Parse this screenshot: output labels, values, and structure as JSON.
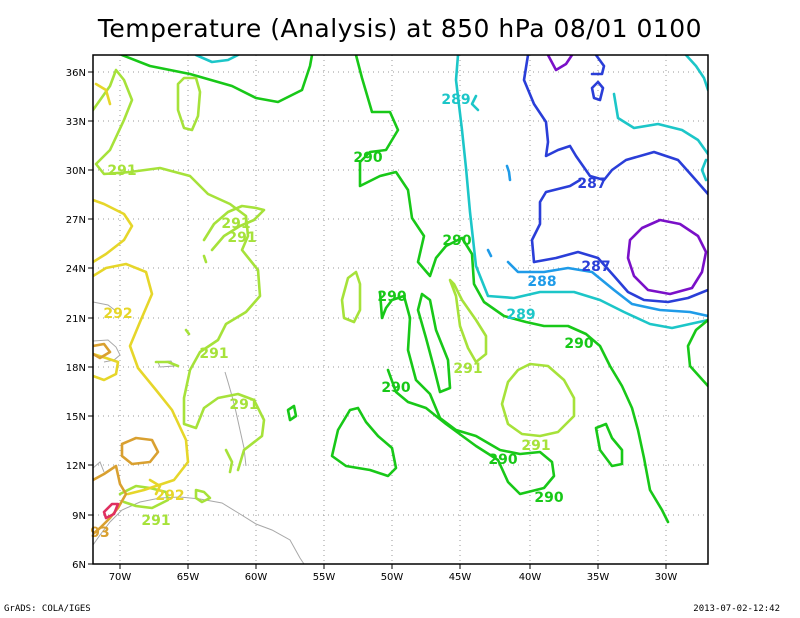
{
  "title": "Temperature (Analysis) at 850 hPa 08/01 0100",
  "footer": {
    "credit": "GrADS: COLA/IGES",
    "timestamp": "2013-07-02-12:42"
  },
  "axes": {
    "x_ticks": [
      "70W",
      "65W",
      "60W",
      "55W",
      "50W",
      "45W",
      "40W",
      "35W",
      "30W"
    ],
    "y_ticks": [
      "36N",
      "33N",
      "30N",
      "27N",
      "24N",
      "21N",
      "18N",
      "15N",
      "12N",
      "9N",
      "6N"
    ]
  },
  "contour_colors": {
    "286": "#7a10c8",
    "287": "#2a3ed8",
    "288": "#1f9be8",
    "289": "#1cc6c8",
    "290": "#18c818",
    "291": "#a6e23a",
    "292": "#e6d62a",
    "293": "#d9a030",
    "294": "#e03060"
  },
  "contour_labels": [
    {
      "text": "289",
      "color": "289"
    },
    {
      "text": "290",
      "color": "290"
    },
    {
      "text": "287",
      "color": "287"
    },
    {
      "text": "291",
      "color": "291"
    },
    {
      "text": "291",
      "color": "291"
    },
    {
      "text": "291",
      "color": "291"
    },
    {
      "text": "290",
      "color": "290"
    },
    {
      "text": "287",
      "color": "287"
    },
    {
      "text": "288",
      "color": "288"
    },
    {
      "text": "292",
      "color": "292"
    },
    {
      "text": "290",
      "color": "290"
    },
    {
      "text": "289",
      "color": "289"
    },
    {
      "text": "291",
      "color": "291"
    },
    {
      "text": "290",
      "color": "290"
    },
    {
      "text": "291",
      "color": "291"
    },
    {
      "text": "290",
      "color": "290"
    },
    {
      "text": "291",
      "color": "291"
    },
    {
      "text": "290",
      "color": "290"
    },
    {
      "text": "291",
      "color": "291"
    },
    {
      "text": "290",
      "color": "290"
    },
    {
      "text": "292",
      "color": "292"
    },
    {
      "text": "291",
      "color": "291"
    },
    {
      "text": "93",
      "color": "293"
    }
  ]
}
